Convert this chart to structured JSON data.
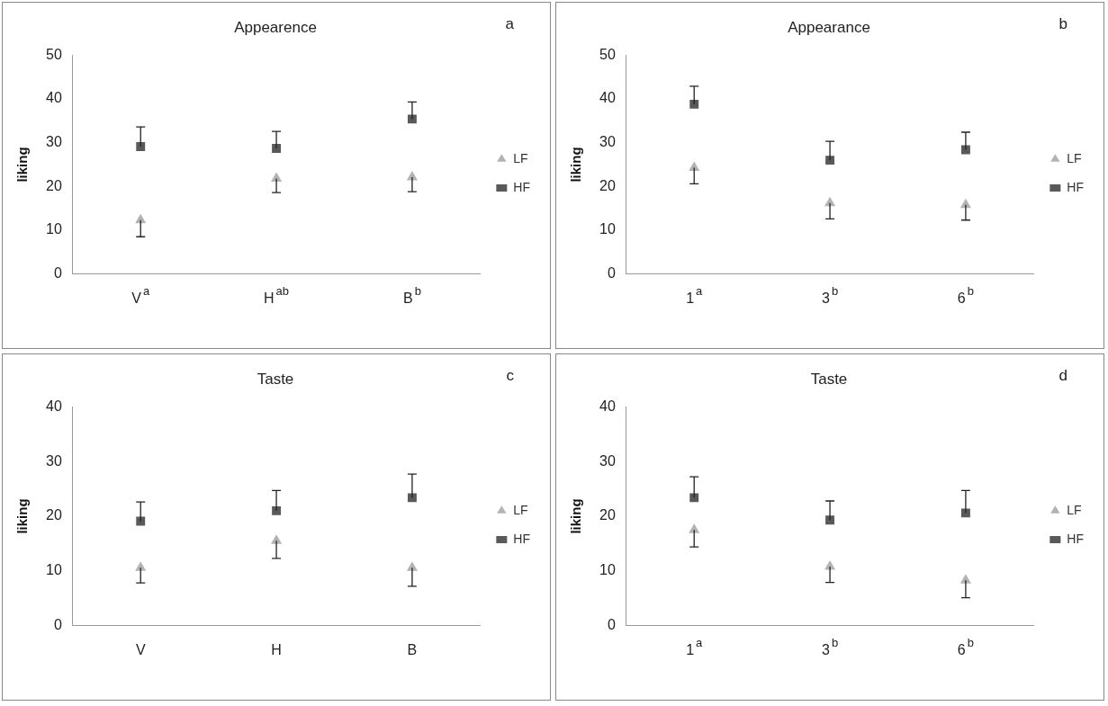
{
  "chart_data": [
    {
      "type": "scatter",
      "title": "Appearence",
      "ylabel": "liking",
      "categories": [
        "V$^{a}$",
        "H$^{ab}$",
        "B$^{b}$"
      ],
      "ylim": [
        0,
        50
      ],
      "yticks": [
        0,
        10,
        20,
        30,
        40,
        50
      ],
      "legend": "right",
      "annotations": [
        "a"
      ],
      "series": [
        {
          "name": "LF",
          "color": "#b3b3b3",
          "marker": "triangle",
          "values": [
            12.3,
            21.8,
            22.1
          ],
          "errors": [
            [
              8.5,
              12.3
            ],
            [
              18.6,
              21.8
            ],
            [
              18.8,
              22.1
            ]
          ]
        },
        {
          "name": "HF",
          "color": "#595959",
          "marker": "square",
          "values": [
            29.1,
            28.7,
            35.4
          ],
          "errors": [
            [
              29.1,
              33.6
            ],
            [
              28.7,
              32.6
            ],
            [
              35.4,
              39.3
            ]
          ]
        }
      ]
    },
    {
      "type": "scatter",
      "title": "Appearance",
      "ylabel": "liking",
      "categories": [
        "1$^{a}$",
        "3$^{b}$",
        "6$^{b}$"
      ],
      "ylim": [
        0,
        50
      ],
      "yticks": [
        0,
        10,
        20,
        30,
        40,
        50
      ],
      "legend": "right",
      "annotations": [
        "b"
      ],
      "series": [
        {
          "name": "LF",
          "color": "#b3b3b3",
          "marker": "triangle",
          "values": [
            24.3,
            16.2,
            15.8
          ],
          "errors": [
            [
              20.6,
              24.3
            ],
            [
              12.6,
              16.2
            ],
            [
              12.3,
              15.8
            ]
          ]
        },
        {
          "name": "HF",
          "color": "#595959",
          "marker": "square",
          "values": [
            38.8,
            26.0,
            28.4
          ],
          "errors": [
            [
              38.8,
              42.9
            ],
            [
              26.0,
              30.3
            ],
            [
              28.4,
              32.4
            ]
          ]
        }
      ]
    },
    {
      "type": "scatter",
      "title": "Taste",
      "ylabel": "liking",
      "categories": [
        "V",
        "H",
        "B"
      ],
      "ylim": [
        0,
        40
      ],
      "yticks": [
        0,
        10,
        20,
        30,
        40
      ],
      "legend": "right",
      "annotations": [
        "c"
      ],
      "series": [
        {
          "name": "LF",
          "color": "#b3b3b3",
          "marker": "triangle",
          "values": [
            10.6,
            15.5,
            10.6
          ],
          "errors": [
            [
              7.8,
              10.6
            ],
            [
              12.3,
              15.5
            ],
            [
              7.2,
              10.6
            ]
          ]
        },
        {
          "name": "HF",
          "color": "#595959",
          "marker": "square",
          "values": [
            19.1,
            21.0,
            23.4
          ],
          "errors": [
            [
              19.1,
              22.6
            ],
            [
              21.0,
              24.7
            ],
            [
              23.4,
              27.7
            ]
          ]
        }
      ]
    },
    {
      "type": "scatter",
      "title": "Taste",
      "ylabel": "liking",
      "categories": [
        "1$^{a}$",
        "3$^{b}$",
        "6$^{b}$"
      ],
      "ylim": [
        0,
        40
      ],
      "yticks": [
        0,
        10,
        20,
        30,
        40
      ],
      "legend": "right",
      "annotations": [
        "d"
      ],
      "series": [
        {
          "name": "LF",
          "color": "#b3b3b3",
          "marker": "triangle",
          "values": [
            17.5,
            10.8,
            8.3
          ],
          "errors": [
            [
              14.4,
              17.5
            ],
            [
              7.9,
              10.8
            ],
            [
              5.1,
              8.3
            ]
          ]
        },
        {
          "name": "HF",
          "color": "#595959",
          "marker": "square",
          "values": [
            23.4,
            19.3,
            20.6
          ],
          "errors": [
            [
              23.4,
              27.2
            ],
            [
              19.3,
              22.8
            ],
            [
              20.6,
              24.7
            ]
          ]
        }
      ]
    }
  ]
}
